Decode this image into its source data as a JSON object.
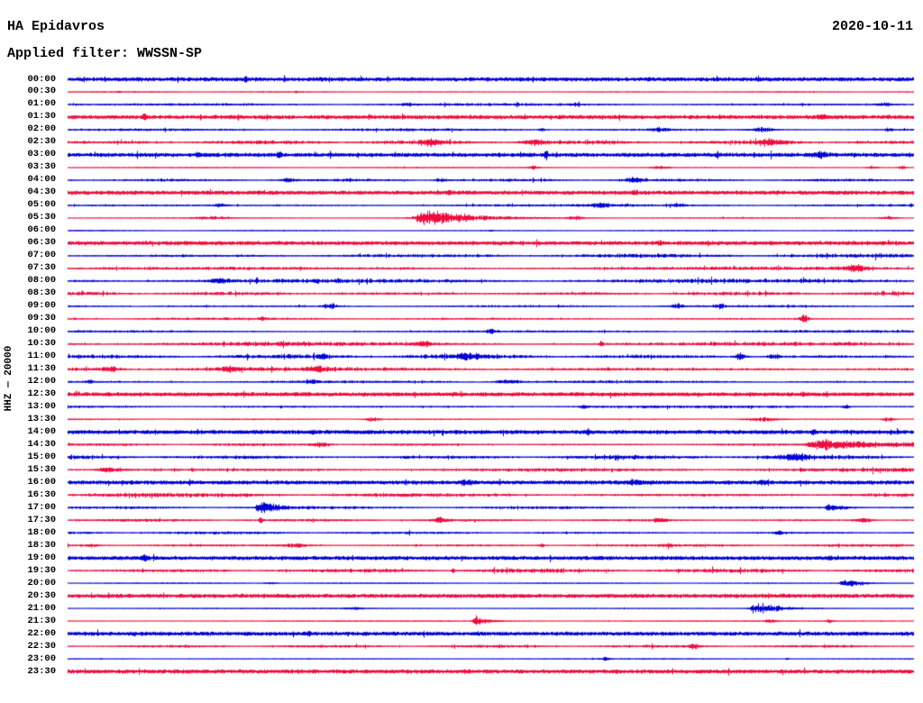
{
  "header": {
    "station": "HA Epidavros",
    "filter": "Applied filter: WWSSN-SP",
    "date": "2020-10-11"
  },
  "axis": {
    "scale_label": "HHZ — 20000"
  },
  "chart_data": {
    "type": "line",
    "subtype": "helicorder-daily-seismogram",
    "title": "HA Epidavros",
    "date": "2020-10-11",
    "filter": "WWSSN-SP",
    "channel_scale": "HHZ — 20000",
    "row_interval_minutes": 30,
    "x_range_minutes": [
      0,
      30
    ],
    "grid": false,
    "legend": "none",
    "trace_colors": {
      "hour_rows": "#0202d6",
      "half_hour_rows": "#ee0c3e"
    },
    "event_encoding": "events: [position_fraction_of_row, peak_amplitude_px, width_fraction, has_decay_tail]",
    "rows": [
      {
        "time": "00:00",
        "color": "blue",
        "activity": "bold",
        "events": [
          [
            0.21,
            4,
            0.0015,
            0
          ]
        ]
      },
      {
        "time": "00:30",
        "color": "red",
        "activity": "thin",
        "events": [
          [
            0.06,
            1.5,
            0.0015,
            0
          ],
          [
            0.27,
            1.5,
            0.0015,
            0
          ]
        ]
      },
      {
        "time": "01:00",
        "color": "blue",
        "activity": "medium",
        "events": [
          [
            0.4,
            2.5,
            0.005,
            0
          ],
          [
            0.6,
            3,
            0.004,
            0
          ],
          [
            0.965,
            2,
            0.008,
            0
          ]
        ]
      },
      {
        "time": "01:30",
        "color": "red",
        "activity": "bold",
        "events": [
          [
            0.09,
            4,
            0.002,
            0
          ],
          [
            0.89,
            3,
            0.004,
            0
          ]
        ]
      },
      {
        "time": "02:00",
        "color": "blue",
        "activity": "medium",
        "events": [
          [
            0.56,
            2.5,
            0.003,
            0
          ],
          [
            0.7,
            2.5,
            0.008,
            0
          ],
          [
            0.82,
            3,
            0.01,
            0
          ],
          [
            0.97,
            3,
            0.003,
            0
          ]
        ]
      },
      {
        "time": "02:30",
        "color": "red",
        "activity": "dense",
        "events": [
          [
            0.43,
            3,
            0.008,
            0
          ],
          [
            0.55,
            3,
            0.01,
            0
          ],
          [
            0.83,
            3.5,
            0.012,
            0
          ]
        ]
      },
      {
        "time": "03:00",
        "color": "blue",
        "activity": "bold",
        "events": [
          [
            0.155,
            3,
            0.002,
            0
          ],
          [
            0.25,
            3,
            0.002,
            0
          ],
          [
            0.565,
            7,
            0.0015,
            0
          ],
          [
            0.89,
            3.5,
            0.006,
            0
          ]
        ]
      },
      {
        "time": "03:30",
        "color": "red",
        "activity": "thin",
        "events": [
          [
            0.55,
            2.5,
            0.005,
            0
          ],
          [
            0.7,
            2.5,
            0.008,
            0
          ],
          [
            0.95,
            2.5,
            0.005,
            0
          ],
          [
            0.985,
            3,
            0.003,
            0
          ]
        ]
      },
      {
        "time": "04:00",
        "color": "blue",
        "activity": "medium",
        "events": [
          [
            0.26,
            2.5,
            0.006,
            0
          ],
          [
            0.44,
            2.5,
            0.005,
            0
          ],
          [
            0.67,
            3,
            0.008,
            0
          ]
        ]
      },
      {
        "time": "04:30",
        "color": "red",
        "activity": "bold",
        "events": [
          [
            0.45,
            2,
            0.002,
            0
          ],
          [
            0.67,
            2.5,
            0.002,
            0
          ]
        ]
      },
      {
        "time": "05:00",
        "color": "blue",
        "activity": "medium",
        "events": [
          [
            0.18,
            2.5,
            0.005,
            0
          ],
          [
            0.63,
            3,
            0.008,
            0
          ],
          [
            0.72,
            2.5,
            0.004,
            0
          ]
        ]
      },
      {
        "time": "05:30",
        "color": "red",
        "activity": "thin",
        "events": [
          [
            0.17,
            2,
            0.015,
            0
          ],
          [
            0.425,
            11,
            0.01,
            1
          ],
          [
            0.6,
            2.5,
            0.006,
            0
          ],
          [
            0.97,
            2.5,
            0.008,
            0
          ]
        ]
      },
      {
        "time": "06:00",
        "color": "blue",
        "activity": "thin",
        "events": [
          [
            0.5,
            1.2,
            0.002,
            0
          ]
        ]
      },
      {
        "time": "06:30",
        "color": "red",
        "activity": "bold",
        "events": [
          [
            0.7,
            2.5,
            0.002,
            0
          ]
        ]
      },
      {
        "time": "07:00",
        "color": "blue",
        "activity": "dense",
        "events": []
      },
      {
        "time": "07:30",
        "color": "red",
        "activity": "dense",
        "events": [
          [
            0.93,
            3,
            0.012,
            0
          ]
        ]
      },
      {
        "time": "08:00",
        "color": "blue",
        "activity": "dense",
        "events": [
          [
            0.18,
            3,
            0.008,
            0
          ]
        ]
      },
      {
        "time": "08:30",
        "color": "red",
        "activity": "dense",
        "events": []
      },
      {
        "time": "09:00",
        "color": "blue",
        "activity": "medium",
        "events": [
          [
            0.31,
            4,
            0.006,
            0
          ],
          [
            0.72,
            3,
            0.005,
            0
          ],
          [
            0.77,
            3,
            0.003,
            0
          ]
        ]
      },
      {
        "time": "09:30",
        "color": "red",
        "activity": "medium",
        "events": [
          [
            0.23,
            2.5,
            0.003,
            0
          ],
          [
            0.87,
            5,
            0.004,
            0
          ]
        ]
      },
      {
        "time": "10:00",
        "color": "blue",
        "activity": "medium",
        "events": [
          [
            0.5,
            2.5,
            0.004,
            0
          ]
        ]
      },
      {
        "time": "10:30",
        "color": "red",
        "activity": "dense",
        "events": [
          [
            0.42,
            3,
            0.008,
            0
          ],
          [
            0.63,
            4.5,
            0.002,
            0
          ]
        ]
      },
      {
        "time": "11:00",
        "color": "blue",
        "activity": "dense",
        "events": [
          [
            0.3,
            3,
            0.004,
            0
          ],
          [
            0.47,
            3.5,
            0.01,
            0
          ],
          [
            0.795,
            4.5,
            0.005,
            0
          ],
          [
            0.835,
            3.5,
            0.005,
            0
          ]
        ]
      },
      {
        "time": "11:30",
        "color": "red",
        "activity": "dense",
        "events": [
          [
            0.05,
            3,
            0.01,
            0
          ],
          [
            0.19,
            3,
            0.01,
            0
          ],
          [
            0.295,
            3,
            0.006,
            0
          ]
        ]
      },
      {
        "time": "12:00",
        "color": "blue",
        "activity": "medium",
        "events": [
          [
            0.025,
            3,
            0.003,
            0
          ],
          [
            0.29,
            3,
            0.005,
            0
          ],
          [
            0.52,
            3,
            0.01,
            0
          ]
        ]
      },
      {
        "time": "12:30",
        "color": "red",
        "activity": "bold",
        "events": [
          [
            0.87,
            2.5,
            0.002,
            0
          ]
        ]
      },
      {
        "time": "13:00",
        "color": "blue",
        "activity": "medium",
        "events": [
          [
            0.61,
            3,
            0.004,
            0
          ],
          [
            0.92,
            2.5,
            0.003,
            0
          ]
        ]
      },
      {
        "time": "13:30",
        "color": "red",
        "activity": "thin",
        "events": [
          [
            0.36,
            3,
            0.006,
            0
          ],
          [
            0.82,
            2.5,
            0.015,
            0
          ],
          [
            0.97,
            3,
            0.005,
            0
          ]
        ]
      },
      {
        "time": "14:00",
        "color": "blue",
        "activity": "bold",
        "events": [
          [
            0.29,
            2.5,
            0.0015,
            0
          ],
          [
            0.615,
            2.5,
            0.0015,
            0
          ],
          [
            0.88,
            2.5,
            0.002,
            0
          ]
        ]
      },
      {
        "time": "14:30",
        "color": "red",
        "activity": "medium",
        "events": [
          [
            0.3,
            3,
            0.008,
            0
          ],
          [
            0.895,
            7,
            0.013,
            1
          ]
        ]
      },
      {
        "time": "15:00",
        "color": "blue",
        "activity": "dense",
        "events": [
          [
            0.86,
            4,
            0.01,
            0
          ]
        ]
      },
      {
        "time": "15:30",
        "color": "red",
        "activity": "dense",
        "events": [
          [
            0.05,
            3.5,
            0.01,
            0
          ]
        ]
      },
      {
        "time": "16:00",
        "color": "blue",
        "activity": "bold",
        "events": [
          [
            0.47,
            2.5,
            0.005,
            0
          ],
          [
            0.67,
            2.5,
            0.006,
            0
          ],
          [
            0.82,
            2.5,
            0.003,
            0
          ]
        ]
      },
      {
        "time": "16:30",
        "color": "red",
        "activity": "dense",
        "events": []
      },
      {
        "time": "17:00",
        "color": "blue",
        "activity": "medium",
        "events": [
          [
            0.228,
            10,
            0.0035,
            1
          ],
          [
            0.9,
            5.5,
            0.003,
            1
          ]
        ]
      },
      {
        "time": "17:30",
        "color": "red",
        "activity": "medium",
        "events": [
          [
            0.228,
            3.5,
            0.0015,
            0
          ],
          [
            0.44,
            3,
            0.006,
            0
          ],
          [
            0.7,
            3,
            0.006,
            0
          ],
          [
            0.94,
            3,
            0.008,
            0
          ]
        ]
      },
      {
        "time": "18:00",
        "color": "blue",
        "activity": "medium",
        "events": [
          [
            0.84,
            3,
            0.004,
            0
          ]
        ]
      },
      {
        "time": "18:30",
        "color": "red",
        "activity": "medium",
        "events": [
          [
            0.03,
            2.5,
            0.005,
            0
          ],
          [
            0.27,
            2.5,
            0.012,
            0
          ],
          [
            0.56,
            2.5,
            0.003,
            0
          ],
          [
            0.71,
            2.5,
            0.003,
            0
          ]
        ]
      },
      {
        "time": "19:00",
        "color": "blue",
        "activity": "bold",
        "events": [
          [
            0.09,
            2.5,
            0.003,
            0
          ],
          [
            0.9,
            2.5,
            0.002,
            0
          ]
        ]
      },
      {
        "time": "19:30",
        "color": "red",
        "activity": "dense",
        "events": [
          [
            0.455,
            4.5,
            0.0015,
            0
          ]
        ]
      },
      {
        "time": "20:00",
        "color": "blue",
        "activity": "thin",
        "events": [
          [
            0.24,
            1.8,
            0.005,
            0
          ],
          [
            0.918,
            7,
            0.0035,
            1
          ]
        ]
      },
      {
        "time": "20:30",
        "color": "red",
        "activity": "bold",
        "events": []
      },
      {
        "time": "21:00",
        "color": "blue",
        "activity": "thin",
        "events": [
          [
            0.34,
            1.8,
            0.008,
            0
          ],
          [
            0.815,
            8,
            0.006,
            1
          ]
        ]
      },
      {
        "time": "21:30",
        "color": "red",
        "activity": "thin",
        "events": [
          [
            0.482,
            8,
            0.0025,
            1
          ],
          [
            0.83,
            2.5,
            0.005,
            0
          ],
          [
            0.9,
            2.5,
            0.003,
            0
          ]
        ]
      },
      {
        "time": "22:00",
        "color": "blue",
        "activity": "bold",
        "events": [
          [
            0.285,
            3,
            0.0015,
            0
          ]
        ]
      },
      {
        "time": "22:30",
        "color": "red",
        "activity": "medium",
        "events": [
          [
            0.74,
            3.5,
            0.004,
            0
          ]
        ]
      },
      {
        "time": "23:00",
        "color": "blue",
        "activity": "thin",
        "events": [
          [
            0.635,
            2.5,
            0.003,
            0
          ],
          [
            0.85,
            1.8,
            0.0015,
            0
          ]
        ]
      },
      {
        "time": "23:30",
        "color": "red",
        "activity": "bold",
        "events": []
      }
    ]
  }
}
